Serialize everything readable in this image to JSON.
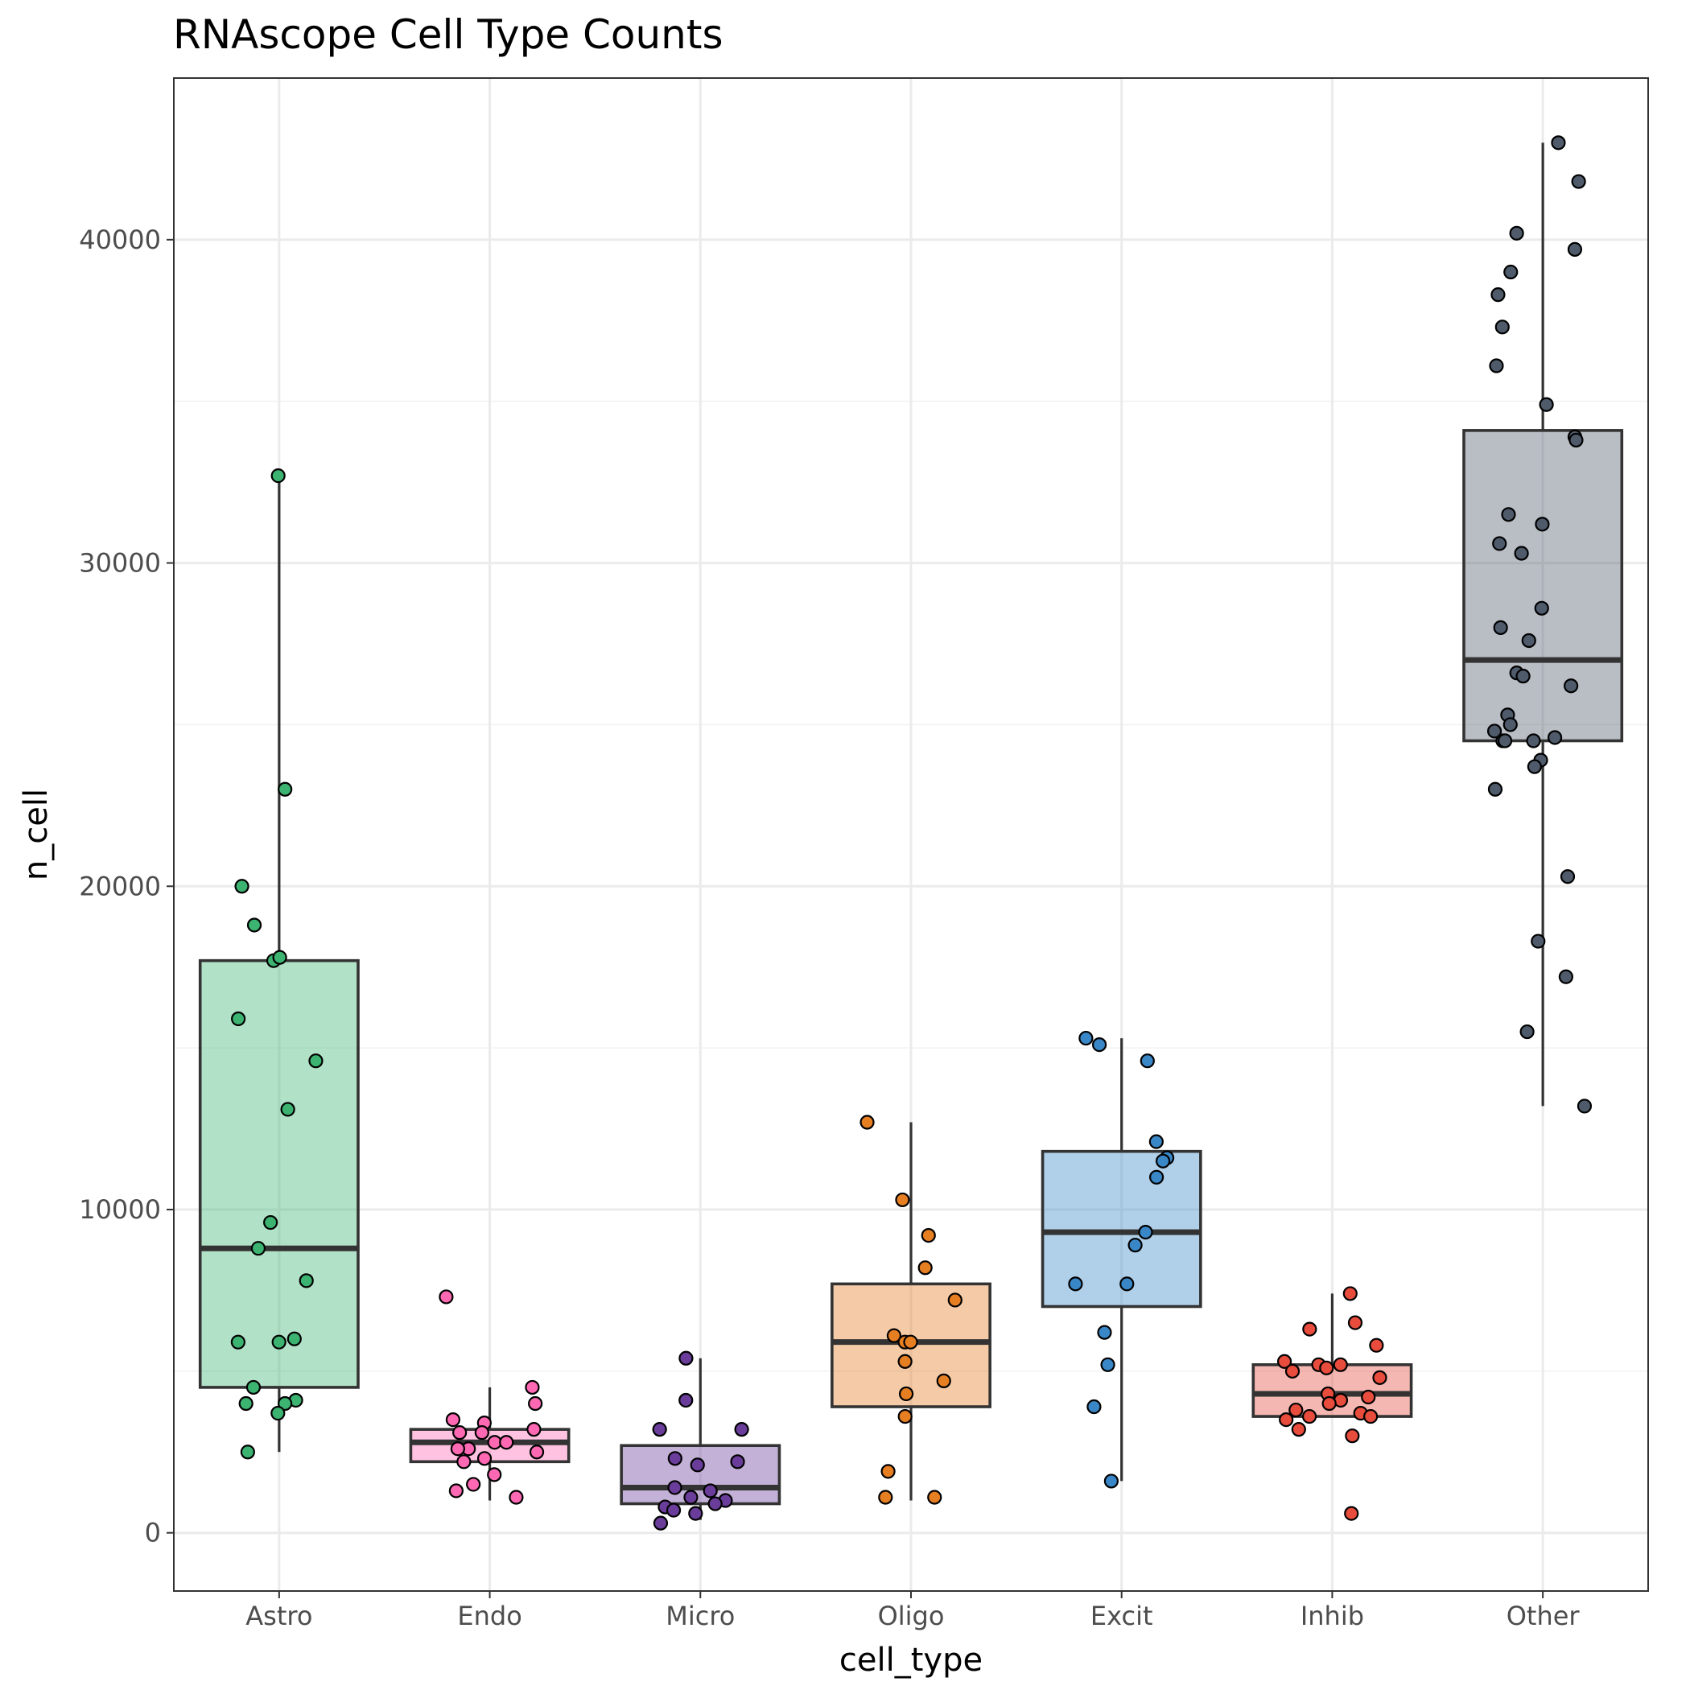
{
  "chart_data": {
    "type": "box",
    "title": "RNAscope Cell Type Counts",
    "xlabel": "cell_type",
    "ylabel": "n_cell",
    "ylim": [
      -1800,
      45000
    ],
    "y_ticks": [
      0,
      10000,
      20000,
      30000,
      40000
    ],
    "y_tick_labels": [
      "0",
      "10000",
      "20000",
      "30000",
      "40000"
    ],
    "grid": true,
    "legend": "none",
    "categories": [
      "Astro",
      "Endo",
      "Micro",
      "Oligo",
      "Excit",
      "Inhib",
      "Other"
    ],
    "boxes": [
      {
        "category": "Astro",
        "color": "#3cb371",
        "q1": 4500,
        "median": 8800,
        "q3": 17700,
        "whisker_low": 2500,
        "whisker_high": 32700
      },
      {
        "category": "Endo",
        "color": "#ff69b4",
        "q1": 2200,
        "median": 2800,
        "q3": 3200,
        "whisker_low": 1000,
        "whisker_high": 4500
      },
      {
        "category": "Micro",
        "color": "#6a3d9a",
        "q1": 900,
        "median": 1400,
        "q3": 2700,
        "whisker_low": 400,
        "whisker_high": 5400
      },
      {
        "category": "Oligo",
        "color": "#e67e22",
        "q1": 3900,
        "median": 5900,
        "q3": 7700,
        "whisker_low": 1000,
        "whisker_high": 12700
      },
      {
        "category": "Excit",
        "color": "#3a87c7",
        "q1": 7000,
        "median": 9300,
        "q3": 11800,
        "whisker_low": 1600,
        "whisker_high": 15300
      },
      {
        "category": "Inhib",
        "color": "#e74c3c",
        "q1": 3600,
        "median": 4300,
        "q3": 5200,
        "whisker_low": 3600,
        "whisker_high": 7400
      },
      {
        "category": "Other",
        "color": "#4f5b6b",
        "q1": 24500,
        "median": 27000,
        "q3": 34100,
        "whisker_low": 13200,
        "whisker_high": 43000
      }
    ],
    "points": [
      {
        "category": "Astro",
        "values": [
          32700,
          23000,
          20000,
          18800,
          17700,
          17800,
          15900,
          14600,
          13100,
          9600,
          8800,
          7800,
          6000,
          5900,
          5900,
          4500,
          4100,
          4000,
          4000,
          3700,
          2500
        ]
      },
      {
        "category": "Endo",
        "values": [
          7300,
          4500,
          4000,
          3500,
          3400,
          3200,
          3100,
          3100,
          2800,
          2800,
          2600,
          2600,
          2500,
          2300,
          2200,
          1800,
          1500,
          1300,
          1100
        ]
      },
      {
        "category": "Micro",
        "values": [
          5400,
          4100,
          3200,
          3200,
          2300,
          2200,
          2100,
          1400,
          1300,
          1100,
          1000,
          900,
          800,
          700,
          600,
          300
        ]
      },
      {
        "category": "Oligo",
        "values": [
          12700,
          10300,
          9200,
          8200,
          7200,
          6100,
          5900,
          5900,
          5300,
          4700,
          4300,
          3600,
          1900,
          1100,
          1100
        ]
      },
      {
        "category": "Excit",
        "values": [
          15300,
          15100,
          14600,
          12100,
          11600,
          11500,
          11000,
          9300,
          8900,
          7700,
          7700,
          6200,
          5200,
          3900,
          1600
        ]
      },
      {
        "category": "Inhib",
        "values": [
          7400,
          6500,
          6300,
          5800,
          5300,
          5200,
          5200,
          5100,
          5000,
          4800,
          4300,
          4200,
          4100,
          4000,
          3800,
          3700,
          3600,
          3600,
          3500,
          3200,
          3000,
          600
        ]
      },
      {
        "category": "Other",
        "values": [
          43000,
          41800,
          40200,
          39700,
          39000,
          38300,
          37300,
          36100,
          34900,
          33900,
          33800,
          31500,
          31200,
          30600,
          30300,
          28600,
          28000,
          27600,
          26600,
          26500,
          26200,
          25300,
          25000,
          24800,
          24600,
          24500,
          24500,
          24500,
          23900,
          23700,
          23000,
          20300,
          18300,
          17200,
          15500,
          13200
        ]
      }
    ]
  }
}
